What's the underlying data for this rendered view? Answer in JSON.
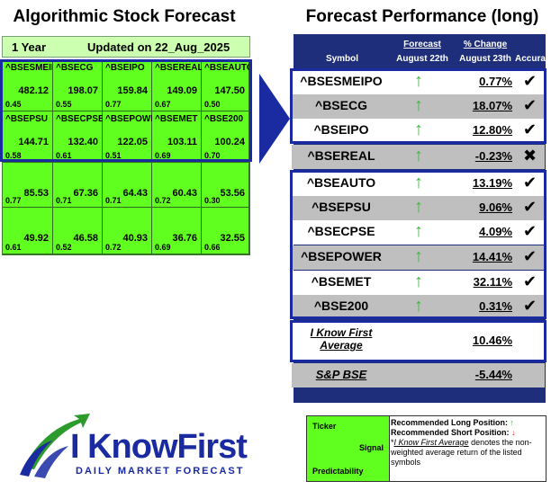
{
  "left": {
    "title": "Algorithmic Stock Forecast",
    "period": "1 Year",
    "updated": "Updated on 22_Aug_2025",
    "cells": [
      {
        "symbol": "^BSESMEIPO",
        "signal": "482.12",
        "predictability": "0.45"
      },
      {
        "symbol": "^BSECG",
        "signal": "198.07",
        "predictability": "0.55"
      },
      {
        "symbol": "^BSEIPO",
        "signal": "159.84",
        "predictability": "0.77"
      },
      {
        "symbol": "^BSEREAL",
        "signal": "149.09",
        "predictability": "0.67"
      },
      {
        "symbol": "^BSEAUTO",
        "signal": "147.50",
        "predictability": "0.50"
      },
      {
        "symbol": "^BSEPSU",
        "signal": "144.71",
        "predictability": "0.58"
      },
      {
        "symbol": "^BSECPSE",
        "signal": "132.40",
        "predictability": "0.61"
      },
      {
        "symbol": "^BSEPOWER",
        "signal": "122.05",
        "predictability": "0.51"
      },
      {
        "symbol": "^BSEMET",
        "signal": "103.11",
        "predictability": "0.69"
      },
      {
        "symbol": "^BSE200",
        "signal": "100.24",
        "predictability": "0.70"
      },
      {
        "symbol": "",
        "signal": "85.53",
        "predictability": "0.77"
      },
      {
        "symbol": "",
        "signal": "67.36",
        "predictability": "0.71"
      },
      {
        "symbol": "",
        "signal": "64.43",
        "predictability": "0.71"
      },
      {
        "symbol": "",
        "signal": "60.43",
        "predictability": "0.72"
      },
      {
        "symbol": "",
        "signal": "53.56",
        "predictability": "0.30"
      },
      {
        "symbol": "",
        "signal": "49.92",
        "predictability": "0.61"
      },
      {
        "symbol": "",
        "signal": "46.58",
        "predictability": "0.52"
      },
      {
        "symbol": "",
        "signal": "40.93",
        "predictability": "0.72"
      },
      {
        "symbol": "",
        "signal": "36.76",
        "predictability": "0.69"
      },
      {
        "symbol": "",
        "signal": "32.55",
        "predictability": "0.66"
      }
    ]
  },
  "right": {
    "title": "Forecast Performance (long)",
    "headers": {
      "symbol": "Symbol",
      "forecast": "Forecast",
      "forecast_date": "August 22th",
      "change": "% Change",
      "change_date": "August 23th",
      "accuracy": "Accuracy"
    },
    "rows": [
      {
        "symbol": "^BSESMEIPO",
        "arrow": "↑",
        "change": "0.77%",
        "accuracy": "✔",
        "bg": "w"
      },
      {
        "symbol": "^BSECG",
        "arrow": "↑",
        "change": "18.07%",
        "accuracy": "✔",
        "bg": "g"
      },
      {
        "symbol": "^BSEIPO",
        "arrow": "↑",
        "change": "12.80%",
        "accuracy": "✔",
        "bg": "w"
      },
      {
        "symbol": "^BSEREAL",
        "arrow": "↑",
        "change": "-0.23%",
        "accuracy": "✖",
        "bg": "g"
      },
      {
        "symbol": "^BSEAUTO",
        "arrow": "↑",
        "change": "13.19%",
        "accuracy": "✔",
        "bg": "w"
      },
      {
        "symbol": "^BSEPSU",
        "arrow": "↑",
        "change": "9.06%",
        "accuracy": "✔",
        "bg": "g"
      },
      {
        "symbol": "^BSECPSE",
        "arrow": "↑",
        "change": "4.09%",
        "accuracy": "✔",
        "bg": "w"
      },
      {
        "symbol": "^BSEPOWER",
        "arrow": "↑",
        "change": "14.41%",
        "accuracy": "✔",
        "bg": "g"
      },
      {
        "symbol": "^BSEMET",
        "arrow": "↑",
        "change": "32.11%",
        "accuracy": "✔",
        "bg": "w"
      },
      {
        "symbol": "^BSE200",
        "arrow": "↑",
        "change": "0.31%",
        "accuracy": "✔",
        "bg": "g"
      }
    ],
    "average": {
      "label_line1": "I Know First",
      "label_line2": "Average",
      "change": "10.46%"
    },
    "benchmark": {
      "label": "S&P BSE",
      "change": "-5.44%"
    }
  },
  "legend": {
    "ticker": "Ticker",
    "signal": "Signal",
    "predictability": "Predictability",
    "long": "Recommended Long Position:",
    "long_icon": "↑",
    "short": "Recommended Short Position:",
    "short_icon": "↓",
    "avg_link": "I Know First Average",
    "avg_text": " denotes the non-weighted average return of the listed symbols"
  },
  "logo": {
    "brand": "I KnowFirst",
    "tagline": "DAILY MARKET FORECAST"
  },
  "colors": {
    "grid_green": "#60ff20",
    "header_green": "#ccffb0",
    "navy": "#1e2e7a",
    "box_blue": "#1a2aa0",
    "arrow_green": "#3db83d",
    "row_gray": "#bfbfbf"
  }
}
